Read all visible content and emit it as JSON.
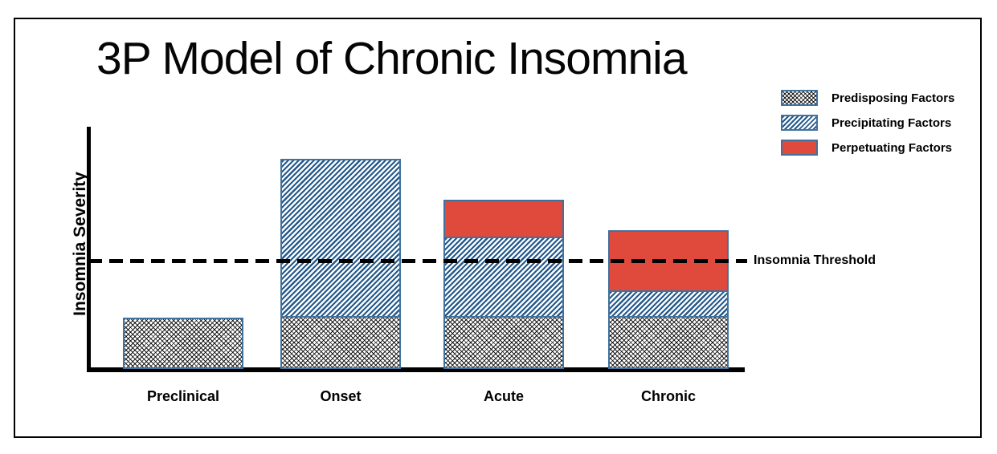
{
  "title": "3P Model of Chronic Insomnia",
  "y_axis_label": "Insomnia Severity",
  "threshold": {
    "label": "Insomnia Threshold"
  },
  "legend": {
    "items": [
      {
        "label": "Predisposing Factors",
        "swatch": "crosshatch-pattern"
      },
      {
        "label": "Precipitating Factors",
        "swatch": "diagonal-hatch-pattern"
      },
      {
        "label": "Perpetuating Factors",
        "swatch": "solid-red"
      }
    ]
  },
  "colors": {
    "perpetuating_red": "#E04A3C",
    "hatch_blue": "#24598C",
    "bar_border_blue": "#41719C",
    "axis_black": "#000000",
    "background": "#FFFFFF"
  },
  "chart_data": {
    "type": "bar",
    "stacked": true,
    "title": "3P Model of Chronic Insomnia",
    "xlabel": "",
    "ylabel": "Insomnia Severity",
    "categories": [
      "Preclinical",
      "Onset",
      "Acute",
      "Chronic"
    ],
    "series": [
      {
        "name": "Predisposing Factors",
        "pattern": "black-crosshatch",
        "values": [
          2.0,
          2.0,
          2.0,
          2.0
        ]
      },
      {
        "name": "Precipitating Factors",
        "pattern": "blue-diagonal-hatch",
        "values": [
          0,
          6.2,
          3.1,
          1.0
        ]
      },
      {
        "name": "Perpetuating Factors",
        "pattern": "solid-red",
        "values": [
          0,
          0,
          1.5,
          2.4
        ]
      }
    ],
    "threshold_line": {
      "label": "Insomnia Threshold",
      "value": 4.2,
      "style": "black-dashed"
    },
    "ylim": [
      0,
      9.4
    ],
    "y_ticks": "none",
    "grid": false,
    "legend_position": "upper-right"
  }
}
